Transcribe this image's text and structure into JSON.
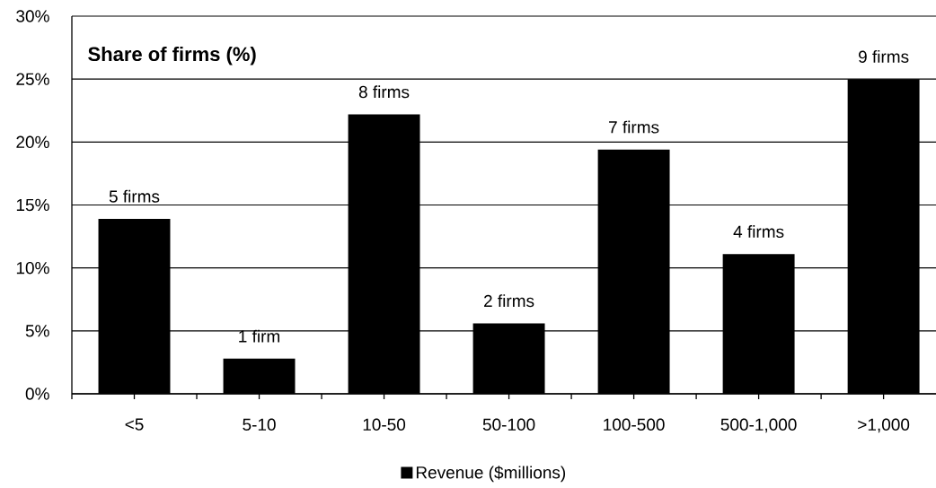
{
  "chart_data": {
    "type": "bar",
    "title": "Share of firms (%)",
    "categories": [
      "<5",
      "5-10",
      "10-50",
      "50-100",
      "100-500",
      "500-1,000",
      ">1,000"
    ],
    "series": [
      {
        "name": "Revenue ($millions)",
        "color": "#000000",
        "values": [
          13.9,
          2.8,
          22.2,
          5.6,
          19.4,
          11.1,
          25.0
        ]
      }
    ],
    "annotations": [
      {
        "text": "5 firms",
        "x": "<5",
        "y": 13.9
      },
      {
        "text": "1 firm",
        "x": "5-10",
        "y": 2.8
      },
      {
        "text": "8 firms",
        "x": "10-50",
        "y": 22.2
      },
      {
        "text": "2 firms",
        "x": "50-100",
        "y": 5.6
      },
      {
        "text": "7 firms",
        "x": "100-500",
        "y": 19.4
      },
      {
        "text": "4 firms",
        "x": "500-1,000",
        "y": 11.1
      },
      {
        "text": "9 firms",
        "x": ">1,000",
        "y": 25.0
      }
    ],
    "ylim": [
      0,
      30
    ],
    "yticks": [
      {
        "value": 0,
        "label": "0%"
      },
      {
        "value": 5,
        "label": "5%"
      },
      {
        "value": 10,
        "label": "10%"
      },
      {
        "value": 15,
        "label": "15%"
      },
      {
        "value": 20,
        "label": "20%"
      },
      {
        "value": 25,
        "label": "25%"
      },
      {
        "value": 30,
        "label": "30%"
      }
    ],
    "grid": "y",
    "legend": "bottom"
  }
}
